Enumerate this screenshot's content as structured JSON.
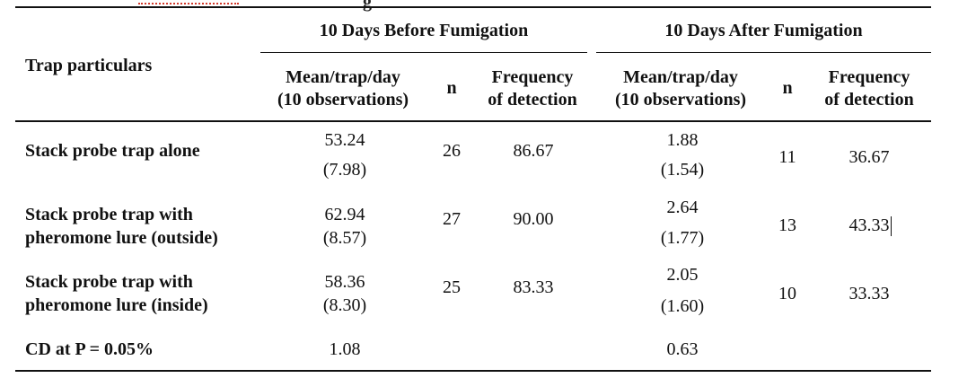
{
  "header": {
    "trap_label": "Trap particulars",
    "before_group": "10 Days Before Fumigation",
    "after_group": "10 Days After Fumigation",
    "before_cols": [
      "Mean/trap/day",
      "(10 observations)",
      "n",
      "Frequency",
      "of detection"
    ],
    "after_cols": [
      "Mean/trap/day",
      "(10 observations)",
      "n",
      "Frequency",
      "of detection"
    ]
  },
  "rows": [
    {
      "label_lines": [
        "Stack probe trap alone"
      ],
      "before_mean": "53.24",
      "before_sd": "(7.98)",
      "before_n": "26",
      "before_freq": "86.67",
      "after_mean": "1.88",
      "after_sd": "(1.54)",
      "after_n": "11",
      "after_freq": "36.67"
    },
    {
      "label_lines": [
        "Stack probe trap with",
        "pheromone lure (outside)"
      ],
      "before_mean": "62.94",
      "before_sd": "(8.57)",
      "before_n": "27",
      "before_freq": "90.00",
      "after_mean": "2.64",
      "after_sd": "(1.77)",
      "after_n": "13",
      "after_freq": "43.33"
    },
    {
      "label_lines": [
        "Stack probe trap with",
        "pheromone lure (inside)"
      ],
      "before_mean": "58.36",
      "before_sd": "(8.30)",
      "before_n": "25",
      "before_freq": "83.33",
      "after_mean": "2.05",
      "after_sd": "(1.60)",
      "after_n": "10",
      "after_freq": "33.33"
    }
  ],
  "cd_row": {
    "label": "CD at P = 0.05%",
    "before": "1.08",
    "after": "0.63"
  },
  "colors": {
    "rule": "#111111",
    "squiggle": "#d23a2c"
  }
}
